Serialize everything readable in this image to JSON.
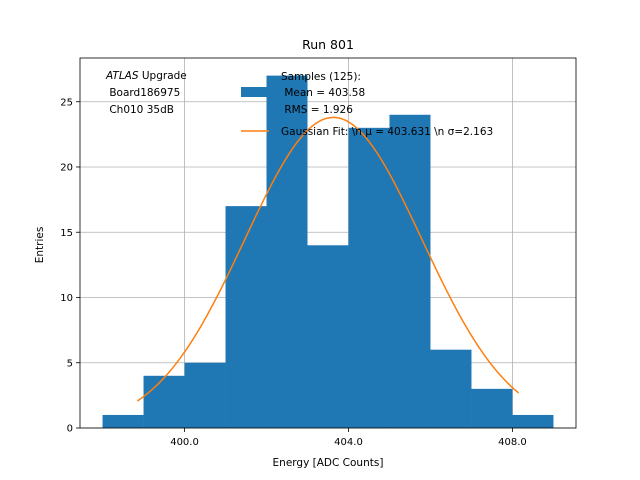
{
  "chart_data": {
    "type": "bar",
    "title": "Run 801",
    "xlabel": "Energy [ADC Counts]",
    "ylabel": "Entries",
    "xlim": [
      397.45,
      409.55
    ],
    "ylim": [
      0,
      28.35
    ],
    "grid": true,
    "bins": [
      {
        "x0": 398,
        "x1": 399,
        "count": 1
      },
      {
        "x0": 399,
        "x1": 400,
        "count": 4
      },
      {
        "x0": 400,
        "x1": 401,
        "count": 5
      },
      {
        "x0": 401,
        "x1": 402,
        "count": 17
      },
      {
        "x0": 402,
        "x1": 403,
        "count": 27
      },
      {
        "x0": 403,
        "x1": 404,
        "count": 14
      },
      {
        "x0": 404,
        "x1": 405,
        "count": 23
      },
      {
        "x0": 405,
        "x1": 406,
        "count": 24
      },
      {
        "x0": 406,
        "x1": 407,
        "count": 6
      },
      {
        "x0": 407,
        "x1": 408,
        "count": 3
      },
      {
        "x0": 408,
        "x1": 409,
        "count": 1
      }
    ],
    "x_ticks": [
      400,
      404,
      408
    ],
    "x_tick_labels": [
      "400.0",
      "404.0",
      "408.0"
    ],
    "y_ticks": [
      0,
      5,
      10,
      15,
      20,
      25
    ],
    "y_tick_labels": [
      "0",
      "5",
      "10",
      "15",
      "20",
      "25"
    ],
    "fit": {
      "type": "gaussian",
      "mu": 403.631,
      "sigma": 2.163,
      "amplitude": 23.8,
      "x_range": [
        398.85,
        408.15
      ]
    },
    "colors": {
      "hist": "#1f77b4",
      "fit": "#ff7f0e",
      "grid": "#b0b0b0"
    },
    "legend": {
      "placement": "top-right",
      "hist_label_lines": [
        "Samples (125):",
        " Mean = 403.58",
        " RMS = 1.926"
      ],
      "fit_label": "Gaussian Fit: \\n μ = 403.631 \\n σ=2.163"
    },
    "annotation": {
      "placement": "top-left",
      "line1_italic": "ATLAS",
      "line1_rest": " Upgrade",
      "line2": " Board186975",
      "line3": " Ch010 35dB"
    }
  }
}
